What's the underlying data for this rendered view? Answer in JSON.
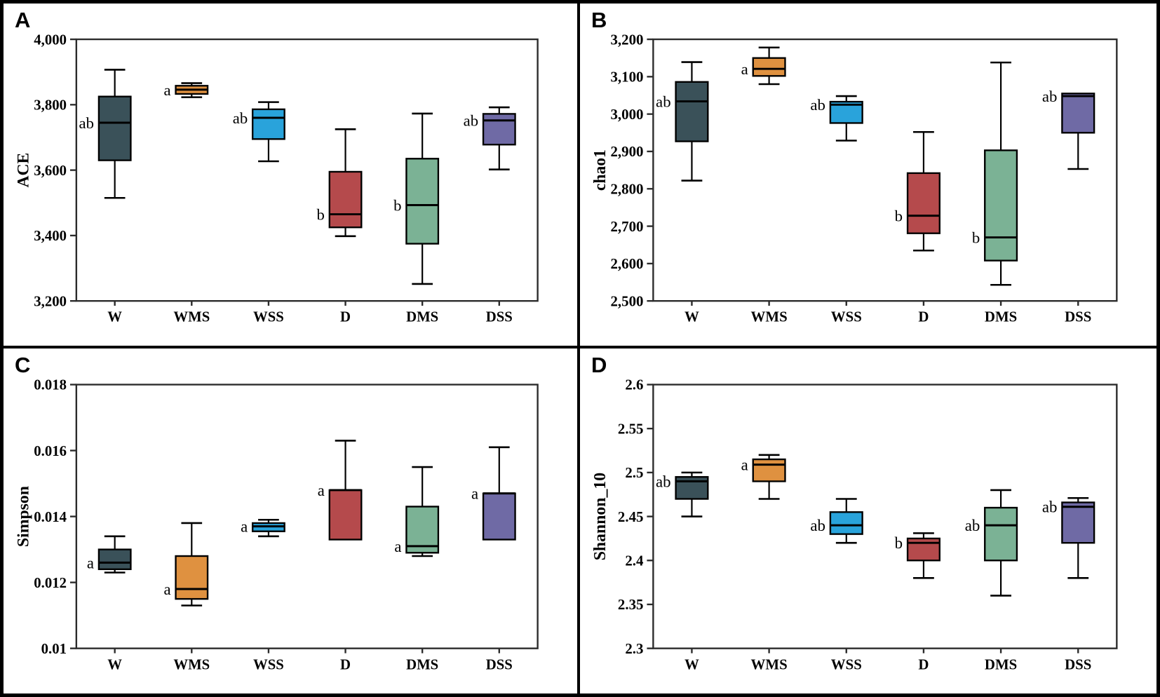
{
  "figure": {
    "panel_labels": [
      "A",
      "B",
      "C",
      "D"
    ],
    "groups": [
      "W",
      "WMS",
      "WSS",
      "D",
      "DMS",
      "DSS"
    ],
    "group_colors": {
      "W": "#3a5159",
      "WMS": "#df9140",
      "WSS": "#29a3db",
      "D": "#b54a4c",
      "DMS": "#7bb295",
      "DSS": "#6f6aa5"
    },
    "axis_color": "#2b2b2b",
    "background_color": "#ffffff"
  },
  "chart_data": [
    {
      "type": "box",
      "panel_label": "A",
      "ylabel": "ACE",
      "ylim": [
        3200,
        4000
      ],
      "ytick_values": [
        3200,
        3400,
        3600,
        3800,
        4000
      ],
      "ytick_labels": [
        "3,200",
        "3,400",
        "3,600",
        "3,800",
        "4,000"
      ],
      "categories": [
        "W",
        "WMS",
        "WSS",
        "D",
        "DMS",
        "DSS"
      ],
      "series": [
        {
          "group": "W",
          "low": 3515,
          "q1": 3630,
          "median": 3745,
          "q3": 3825,
          "high": 3907,
          "sig": "ab"
        },
        {
          "group": "WMS",
          "low": 3823,
          "q1": 3833,
          "median": 3846,
          "q3": 3858,
          "high": 3866,
          "sig": "a"
        },
        {
          "group": "WSS",
          "low": 3627,
          "q1": 3695,
          "median": 3760,
          "q3": 3786,
          "high": 3808,
          "sig": "ab"
        },
        {
          "group": "D",
          "low": 3398,
          "q1": 3425,
          "median": 3465,
          "q3": 3595,
          "high": 3725,
          "sig": "b"
        },
        {
          "group": "DMS",
          "low": 3252,
          "q1": 3375,
          "median": 3493,
          "q3": 3635,
          "high": 3773,
          "sig": "b"
        },
        {
          "group": "DSS",
          "low": 3602,
          "q1": 3678,
          "median": 3752,
          "q3": 3772,
          "high": 3792,
          "sig": "ab"
        }
      ]
    },
    {
      "type": "box",
      "panel_label": "B",
      "ylabel": "chao1",
      "ylim": [
        2500,
        3200
      ],
      "ytick_values": [
        2500,
        2600,
        2700,
        2800,
        2900,
        3000,
        3100,
        3200
      ],
      "ytick_labels": [
        "2,500",
        "2,600",
        "2,700",
        "2,800",
        "2,900",
        "3,000",
        "3,100",
        "3,200"
      ],
      "categories": [
        "W",
        "WMS",
        "WSS",
        "D",
        "DMS",
        "DSS"
      ],
      "series": [
        {
          "group": "W",
          "low": 2822,
          "q1": 2927,
          "median": 3034,
          "q3": 3086,
          "high": 3139,
          "sig": "ab"
        },
        {
          "group": "WMS",
          "low": 3080,
          "q1": 3102,
          "median": 3121,
          "q3": 3150,
          "high": 3178,
          "sig": "a"
        },
        {
          "group": "WSS",
          "low": 2929,
          "q1": 2976,
          "median": 3025,
          "q3": 3033,
          "high": 3048,
          "sig": "ab"
        },
        {
          "group": "D",
          "low": 2635,
          "q1": 2681,
          "median": 2728,
          "q3": 2842,
          "high": 2952,
          "sig": "b"
        },
        {
          "group": "DMS",
          "low": 2543,
          "q1": 2608,
          "median": 2670,
          "q3": 2903,
          "high": 3138,
          "sig": "b"
        },
        {
          "group": "DSS",
          "low": 2853,
          "q1": 2950,
          "median": 3048,
          "q3": 3055,
          "high": 3055,
          "sig": "ab"
        }
      ]
    },
    {
      "type": "box",
      "panel_label": "C",
      "ylabel": "Simpson",
      "ylim": [
        0.01,
        0.018
      ],
      "ytick_values": [
        0.01,
        0.012,
        0.014,
        0.016,
        0.018
      ],
      "ytick_labels": [
        "0.01",
        "0.012",
        "0.014",
        "0.016",
        "0.018"
      ],
      "categories": [
        "W",
        "WMS",
        "WSS",
        "D",
        "DMS",
        "DSS"
      ],
      "series": [
        {
          "group": "W",
          "low": 0.0123,
          "q1": 0.0124,
          "median": 0.0126,
          "q3": 0.013,
          "high": 0.0134,
          "sig": "a"
        },
        {
          "group": "WMS",
          "low": 0.0113,
          "q1": 0.0115,
          "median": 0.0118,
          "q3": 0.0128,
          "high": 0.0138,
          "sig": "a"
        },
        {
          "group": "WSS",
          "low": 0.0134,
          "q1": 0.01355,
          "median": 0.0137,
          "q3": 0.0138,
          "high": 0.0139,
          "sig": "a"
        },
        {
          "group": "D",
          "low": 0.0133,
          "q1": 0.0133,
          "median": 0.0148,
          "q3": 0.0148,
          "high": 0.0163,
          "sig": "a"
        },
        {
          "group": "DMS",
          "low": 0.0128,
          "q1": 0.0129,
          "median": 0.0131,
          "q3": 0.0143,
          "high": 0.0155,
          "sig": "a"
        },
        {
          "group": "DSS",
          "low": 0.0133,
          "q1": 0.0133,
          "median": 0.0147,
          "q3": 0.0147,
          "high": 0.0161,
          "sig": "a"
        }
      ]
    },
    {
      "type": "box",
      "panel_label": "D",
      "ylabel": "Shannon_10",
      "ylim": [
        2.3,
        2.6
      ],
      "ytick_values": [
        2.3,
        2.35,
        2.4,
        2.45,
        2.5,
        2.55,
        2.6
      ],
      "ytick_labels": [
        "2.3",
        "2.35",
        "2.4",
        "2.45",
        "2.5",
        "2.55",
        "2.6"
      ],
      "categories": [
        "W",
        "WMS",
        "WSS",
        "D",
        "DMS",
        "DSS"
      ],
      "series": [
        {
          "group": "W",
          "low": 2.45,
          "q1": 2.47,
          "median": 2.49,
          "q3": 2.495,
          "high": 2.5,
          "sig": "ab"
        },
        {
          "group": "WMS",
          "low": 2.47,
          "q1": 2.49,
          "median": 2.509,
          "q3": 2.515,
          "high": 2.52,
          "sig": "a"
        },
        {
          "group": "WSS",
          "low": 2.42,
          "q1": 2.43,
          "median": 2.44,
          "q3": 2.455,
          "high": 2.47,
          "sig": "ab"
        },
        {
          "group": "D",
          "low": 2.38,
          "q1": 2.4,
          "median": 2.42,
          "q3": 2.425,
          "high": 2.431,
          "sig": "b"
        },
        {
          "group": "DMS",
          "low": 2.36,
          "q1": 2.4,
          "median": 2.44,
          "q3": 2.46,
          "high": 2.48,
          "sig": "ab"
        },
        {
          "group": "DSS",
          "low": 2.38,
          "q1": 2.42,
          "median": 2.461,
          "q3": 2.466,
          "high": 2.471,
          "sig": "ab"
        }
      ]
    }
  ]
}
